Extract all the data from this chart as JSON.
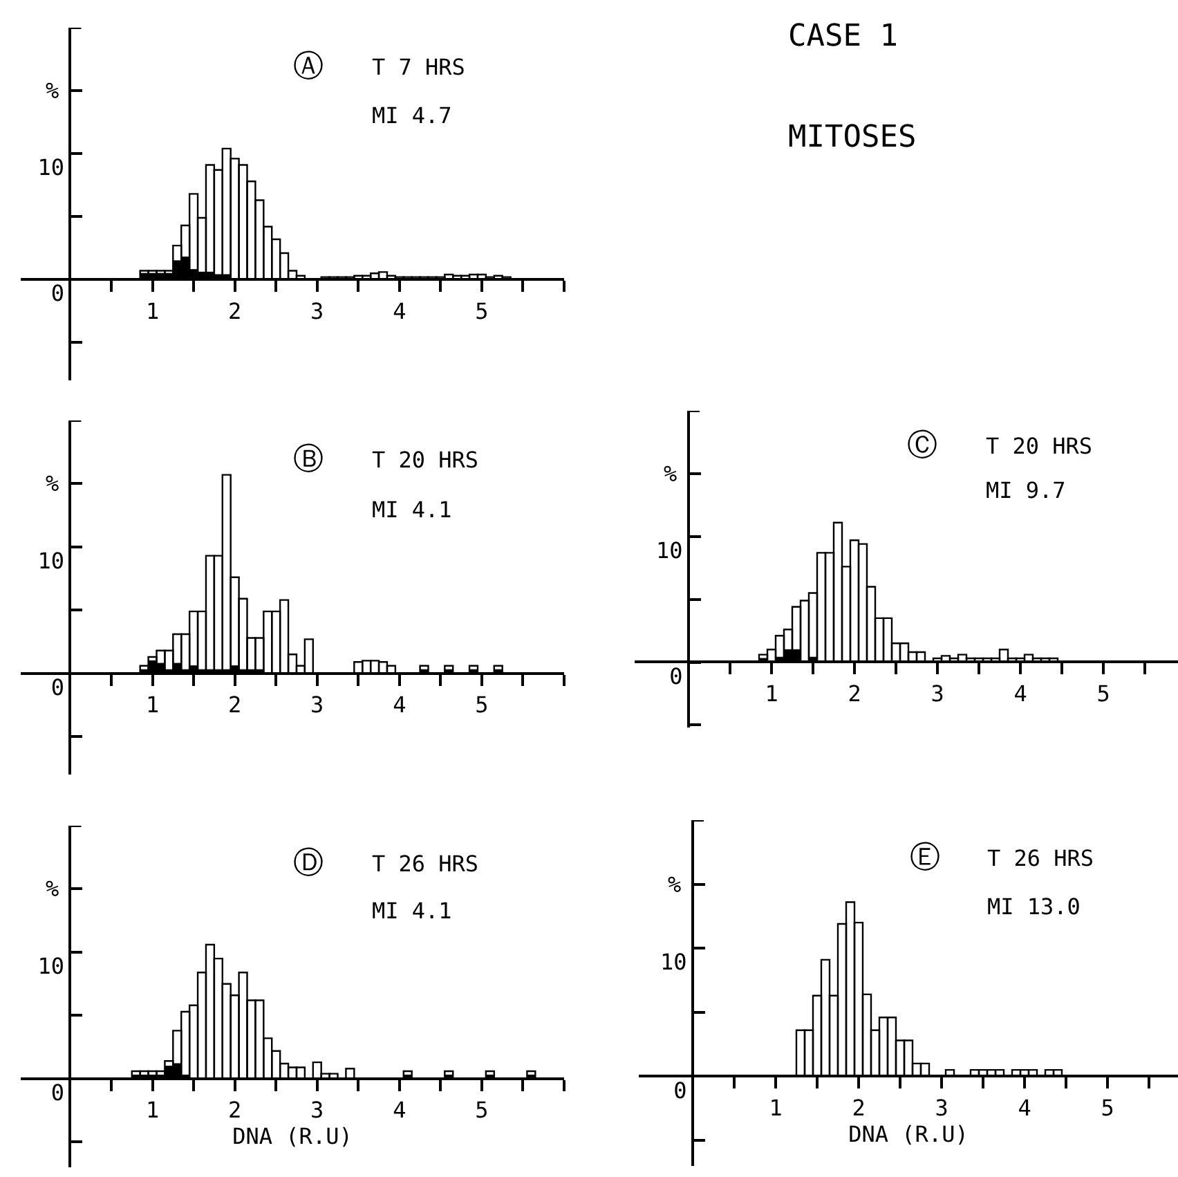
{
  "chart_data": [
    {
      "type": "histogram",
      "ylabel": "%",
      "annotations": [
        "Ⓐ",
        "T 7 HRS",
        "MI 4.7"
      ],
      "bins": [
        0.65,
        0.75,
        0.85,
        0.95,
        1.05,
        1.15,
        1.25,
        1.35,
        1.45,
        1.55,
        1.65,
        1.75,
        1.85,
        1.95,
        2.05,
        2.15,
        2.25,
        2.35,
        2.45,
        2.55,
        2.65,
        2.75,
        2.85,
        2.95,
        3.05,
        3.15,
        3.25,
        3.35,
        3.45,
        3.55,
        3.65,
        3.75,
        3.85,
        3.95,
        4.05,
        4.15,
        4.25,
        4.35,
        4.45,
        4.55,
        4.65,
        4.75,
        4.85,
        4.95,
        5.05,
        5.15,
        5.25,
        5.35,
        5.45,
        5.55,
        5.65
      ],
      "series": [
        {
          "color": "#000000",
          "values": [
            0,
            0,
            0.7,
            0.7,
            0.7,
            0.7,
            2.7,
            4.3,
            6.8,
            4.9,
            9.1,
            8.7,
            10.4,
            9.6,
            9.1,
            7.8,
            6.3,
            4.2,
            3.2,
            2.1,
            0.7,
            0.3,
            0,
            0,
            0.2,
            0.2,
            0.2,
            0.2,
            0.3,
            0.3,
            0.5,
            0.6,
            0.3,
            0.2,
            0.2,
            0.2,
            0.2,
            0.2,
            0.2,
            0.4,
            0.3,
            0.3,
            0.4,
            0.4,
            0.2,
            0.3,
            0.2,
            0,
            0,
            0
          ]
        },
        {
          "color": "#000000",
          "values": [
            0,
            0,
            0.5,
            0.5,
            0.5,
            0.5,
            1.5,
            1.8,
            0.8,
            0.6,
            0.6,
            0.4,
            0.4,
            0,
            0,
            0,
            0,
            0,
            0,
            0,
            0,
            0,
            0,
            0,
            0,
            0,
            0,
            0,
            0,
            0,
            0,
            0,
            0,
            0,
            0,
            0,
            0,
            0,
            0,
            0,
            0,
            0,
            0,
            0,
            0,
            0,
            0,
            0,
            0,
            0
          ]
        }
      ],
      "xlim": [
        -0.6,
        6.0
      ],
      "ylim": [
        -8,
        20
      ],
      "xticks": [
        {
          "value": 0.5,
          "label": null
        },
        1,
        {
          "value": 1.5,
          "label": null
        },
        2,
        {
          "value": 2.5,
          "label": null
        },
        3,
        {
          "value": 3.5,
          "label": null
        },
        4,
        {
          "value": 4.5,
          "label": null
        },
        5,
        {
          "value": 5.5,
          "label": null
        },
        {
          "value": 6,
          "label": null
        }
      ],
      "yticks": [
        {
          "value": -5,
          "label": null
        },
        0,
        {
          "value": 5,
          "label": null
        },
        10,
        {
          "value": 15,
          "label": null
        },
        {
          "value": 20,
          "label": null
        }
      ]
    },
    {
      "type": "histogram",
      "ylabel": "%",
      "annotations": [
        "Ⓑ",
        "T 20 HRS",
        "MI 4.1"
      ],
      "bins": [
        0.65,
        0.75,
        0.85,
        0.95,
        1.05,
        1.15,
        1.25,
        1.35,
        1.45,
        1.55,
        1.65,
        1.75,
        1.85,
        1.95,
        2.05,
        2.15,
        2.25,
        2.35,
        2.45,
        2.55,
        2.65,
        2.75,
        2.85,
        2.95,
        3.05,
        3.15,
        3.25,
        3.35,
        3.45,
        3.55,
        3.65,
        3.75,
        3.85,
        3.95,
        4.05,
        4.15,
        4.25,
        4.35,
        4.45,
        4.55,
        4.65,
        4.75,
        4.85,
        4.95,
        5.05,
        5.15,
        5.25,
        5.35,
        5.45,
        5.55,
        5.65
      ],
      "series": [
        {
          "color": "#000000",
          "values": [
            0,
            0,
            0.6,
            1.3,
            1.8,
            1.8,
            3.1,
            3.1,
            4.9,
            4.9,
            9.3,
            9.3,
            15.7,
            7.6,
            5.9,
            2.8,
            2.8,
            4.9,
            4.9,
            5.8,
            1.5,
            0.6,
            2.7,
            0,
            0,
            0,
            0,
            0,
            0.9,
            1.0,
            1.0,
            0.9,
            0.6,
            0,
            0,
            0,
            0.6,
            0,
            0,
            0.6,
            0,
            0,
            0.6,
            0,
            0,
            0.6,
            0,
            0,
            0,
            0
          ]
        },
        {
          "color": "#000000",
          "values": [
            0,
            0,
            0.3,
            1.0,
            0.8,
            0.3,
            0.8,
            0.3,
            0.6,
            0.3,
            0.3,
            0.3,
            0.3,
            0.6,
            0.3,
            0.3,
            0.3,
            0,
            0,
            0,
            0,
            0,
            0,
            0,
            0,
            0,
            0,
            0,
            0,
            0,
            0,
            0,
            0,
            0,
            0,
            0,
            0.3,
            0,
            0,
            0.3,
            0,
            0,
            0.3,
            0,
            0,
            0.3,
            0,
            0,
            0,
            0
          ]
        }
      ],
      "xlim": [
        -0.6,
        6.0
      ],
      "ylim": [
        -8,
        20
      ],
      "xticks": [
        {
          "value": 0.5,
          "label": null
        },
        1,
        {
          "value": 1.5,
          "label": null
        },
        2,
        {
          "value": 2.5,
          "label": null
        },
        3,
        {
          "value": 3.5,
          "label": null
        },
        4,
        {
          "value": 4.5,
          "label": null
        },
        5,
        {
          "value": 5.5,
          "label": null
        },
        {
          "value": 6,
          "label": null
        }
      ],
      "yticks": [
        {
          "value": -5,
          "label": null
        },
        0,
        {
          "value": 5,
          "label": null
        },
        10,
        {
          "value": 15,
          "label": null
        },
        {
          "value": 20,
          "label": null
        }
      ]
    },
    {
      "type": "histogram",
      "title": "CASE 1",
      "subtitle": "MITOSES",
      "ylabel": "%",
      "annotations": [
        "Ⓒ",
        "T 20 HRS",
        "MI 9.7"
      ],
      "bins": [
        0.65,
        0.75,
        0.85,
        0.95,
        1.05,
        1.15,
        1.25,
        1.35,
        1.45,
        1.55,
        1.65,
        1.75,
        1.85,
        1.95,
        2.05,
        2.15,
        2.25,
        2.35,
        2.45,
        2.55,
        2.65,
        2.75,
        2.85,
        2.95,
        3.05,
        3.15,
        3.25,
        3.35,
        3.45,
        3.55,
        3.65,
        3.75,
        3.85,
        3.95,
        4.05,
        4.15,
        4.25,
        4.35,
        4.45,
        4.55,
        4.65,
        4.75,
        4.85,
        4.95,
        5.05,
        5.15,
        5.25,
        5.35,
        5.45,
        5.55,
        5.65
      ],
      "series": [
        {
          "color": "#000000",
          "values": [
            0,
            0,
            0.6,
            1.0,
            2.1,
            2.6,
            4.4,
            4.9,
            5.5,
            8.7,
            8.7,
            11.1,
            7.6,
            9.7,
            9.4,
            6.0,
            3.5,
            3.5,
            1.5,
            1.5,
            0.8,
            0.8,
            0,
            0.3,
            0.5,
            0.3,
            0.6,
            0.3,
            0.3,
            0.3,
            0.3,
            1.0,
            0.3,
            0.3,
            0.6,
            0.3,
            0.3,
            0.3,
            0,
            0,
            0,
            0,
            0,
            0,
            0,
            0,
            0,
            0,
            0,
            0
          ]
        },
        {
          "color": "#000000",
          "values": [
            0,
            0,
            0.3,
            null,
            0.4,
            1.0,
            1.0,
            null,
            0.4,
            0,
            0,
            0,
            0,
            0,
            0,
            0,
            0,
            0,
            0,
            0,
            0,
            0,
            0,
            0,
            null,
            0,
            0,
            0,
            0,
            0,
            0,
            0,
            0,
            0,
            0,
            0,
            0,
            0,
            0,
            0,
            0,
            0,
            0,
            0,
            0,
            0,
            0,
            0,
            0,
            0
          ]
        }
      ],
      "xlim": [
        -0.65,
        5.9
      ],
      "ylim": [
        -5.2,
        20
      ],
      "xticks": [
        {
          "value": 0.5,
          "label": null
        },
        1,
        {
          "value": 1.5,
          "label": null
        },
        2,
        {
          "value": 2.5,
          "label": null
        },
        3,
        {
          "value": 3.5,
          "label": null
        },
        4,
        {
          "value": 4.5,
          "label": null
        },
        5,
        {
          "value": 5.5,
          "label": null
        }
      ],
      "yticks": [
        {
          "value": -5,
          "label": null
        },
        0,
        {
          "value": 5,
          "label": null
        },
        10,
        {
          "value": 15,
          "label": null
        },
        {
          "value": 20,
          "label": null
        }
      ]
    },
    {
      "type": "histogram",
      "ylabel": "%",
      "xlabel": "DNA (R.U)",
      "annotations": [
        "Ⓓ",
        "T 26 HRS",
        "MI 4.1"
      ],
      "bins": [
        0.65,
        0.75,
        0.85,
        0.95,
        1.05,
        1.15,
        1.25,
        1.35,
        1.45,
        1.55,
        1.65,
        1.75,
        1.85,
        1.95,
        2.05,
        2.15,
        2.25,
        2.35,
        2.45,
        2.55,
        2.65,
        2.75,
        2.85,
        2.95,
        3.05,
        3.15,
        3.25,
        3.35,
        3.45,
        3.55,
        3.65,
        3.75,
        3.85,
        3.95,
        4.05,
        4.15,
        4.25,
        4.35,
        4.45,
        4.55,
        4.65,
        4.75,
        4.85,
        4.95,
        5.05,
        5.15,
        5.25,
        5.35,
        5.45,
        5.55,
        5.65
      ],
      "series": [
        {
          "color": "#000000",
          "values": [
            0,
            0.6,
            0.6,
            0.6,
            0.6,
            1.4,
            3.8,
            5.3,
            5.8,
            8.4,
            10.6,
            9.5,
            7.5,
            6.6,
            8.4,
            6.2,
            6.2,
            3.2,
            2.2,
            1.2,
            0.9,
            0.9,
            0,
            1.3,
            0.4,
            0.4,
            0,
            0.8,
            0,
            0,
            0,
            0,
            0,
            0,
            0.6,
            0,
            0,
            0,
            0,
            0.6,
            0,
            0,
            0,
            0,
            0.6,
            0,
            0,
            0,
            0,
            0.6
          ]
        },
        {
          "color": "#000000",
          "values": [
            0,
            0.3,
            0.3,
            0.3,
            0.3,
            1.0,
            1.2,
            0.3,
            null,
            0,
            0,
            0,
            0,
            0,
            0,
            0,
            0,
            0,
            0,
            0,
            0,
            0,
            0,
            0,
            0,
            0,
            0,
            0,
            0,
            0,
            0,
            0,
            0,
            0,
            0.3,
            0,
            0,
            0,
            0,
            0.3,
            0,
            0,
            0,
            0,
            0.3,
            0,
            0,
            0,
            0,
            0.3
          ]
        }
      ],
      "xlim": [
        -0.6,
        6.0
      ],
      "ylim": [
        -7,
        20
      ],
      "xticks": [
        {
          "value": 0.5,
          "label": null
        },
        1,
        {
          "value": 1.5,
          "label": null
        },
        2,
        {
          "value": 2.5,
          "label": null
        },
        3,
        {
          "value": 3.5,
          "label": null
        },
        4,
        {
          "value": 4.5,
          "label": null
        },
        5,
        {
          "value": 5.5,
          "label": null
        },
        {
          "value": 6,
          "label": null
        }
      ],
      "yticks": [
        {
          "value": -5,
          "label": null
        },
        0,
        {
          "value": 5,
          "label": null
        },
        10,
        {
          "value": 15,
          "label": null
        },
        {
          "value": 20,
          "label": null
        }
      ]
    },
    {
      "type": "histogram",
      "ylabel": "%",
      "xlabel": "DNA (R.U)",
      "annotations": [
        "Ⓔ",
        "T 26 HRS",
        "MI 13.0"
      ],
      "bins": [
        0.65,
        0.75,
        0.85,
        0.95,
        1.05,
        1.15,
        1.25,
        1.35,
        1.45,
        1.55,
        1.65,
        1.75,
        1.85,
        1.95,
        2.05,
        2.15,
        2.25,
        2.35,
        2.45,
        2.55,
        2.65,
        2.75,
        2.85,
        2.95,
        3.05,
        3.15,
        3.25,
        3.35,
        3.45,
        3.55,
        3.65,
        3.75,
        3.85,
        3.95,
        4.05,
        4.15,
        4.25,
        4.35,
        4.45,
        4.55,
        4.65,
        4.75,
        4.85,
        4.95,
        5.05,
        5.15,
        5.25,
        5.35,
        5.45,
        5.55,
        5.65
      ],
      "series": [
        {
          "color": "#000000",
          "values": [
            0,
            0,
            0,
            0,
            0,
            0,
            3.6,
            3.6,
            6.3,
            9.1,
            6.3,
            11.9,
            13.6,
            12.0,
            6.4,
            3.6,
            4.6,
            4.6,
            2.8,
            2.8,
            1.0,
            1.0,
            0,
            0,
            0.5,
            0,
            0,
            0.5,
            0.5,
            0.5,
            0.5,
            0,
            0.5,
            0.5,
            0.5,
            0,
            0.5,
            0.5,
            0,
            0,
            0,
            0,
            0,
            0,
            0,
            0,
            0,
            0,
            0,
            0
          ]
        }
      ],
      "xlim": [
        -0.65,
        5.85
      ],
      "ylim": [
        -7,
        20
      ],
      "xticks": [
        {
          "value": 0.5,
          "label": null
        },
        1,
        {
          "value": 1.5,
          "label": null
        },
        2,
        {
          "value": 2.5,
          "label": null
        },
        3,
        {
          "value": 3.5,
          "label": null
        },
        4,
        {
          "value": 4.5,
          "label": null
        },
        5,
        {
          "value": 5.5,
          "label": null
        }
      ],
      "yticks": [
        {
          "value": -5,
          "label": null
        },
        0,
        {
          "value": 5,
          "label": null
        },
        10,
        {
          "value": 15,
          "label": null
        },
        {
          "value": 20,
          "label": null
        }
      ]
    }
  ]
}
